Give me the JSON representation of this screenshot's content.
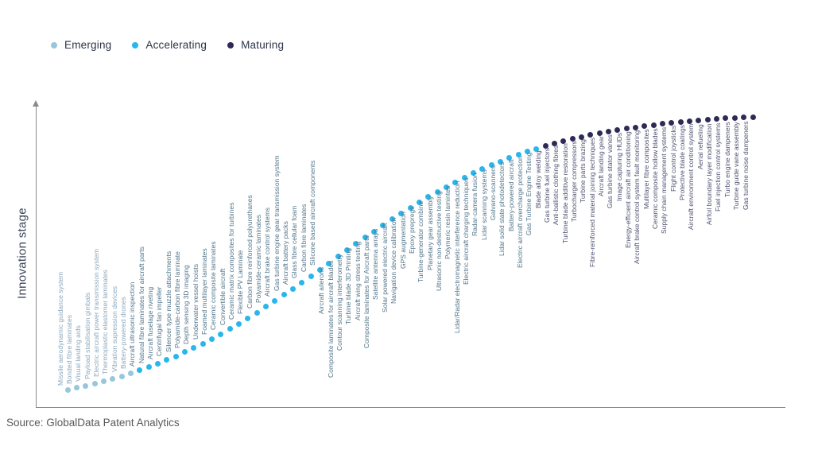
{
  "legend": {
    "items": [
      {
        "label": "Emerging",
        "color": "#97c6dd"
      },
      {
        "label": "Accelerating",
        "color": "#29b6ea"
      },
      {
        "label": "Maturing",
        "color": "#2e2a55"
      }
    ]
  },
  "y_axis_label": "Innovation stage",
  "source": "Source: GlobalData Patent Analytics",
  "label_colors": {
    "Emerging": "#8aa7bd",
    "Accelerating": "#51748a",
    "Maturing": "#4e5070"
  },
  "chart_data": {
    "type": "scatter",
    "title": "",
    "xlabel": "",
    "ylabel": "Innovation stage",
    "grid": false,
    "legend_position": "top-left",
    "x_encoding": "rank order of technology along S-curve (1-77)",
    "y_encoding": "innovation stage (unlabeled S-curve height, arrow axis)",
    "legend": [
      "Emerging",
      "Accelerating",
      "Maturing"
    ],
    "stage_colors": {
      "Emerging": "#97c6dd",
      "Accelerating": "#29b6ea",
      "Maturing": "#2e2a55"
    },
    "points": [
      {
        "rank": 1,
        "label": "Missile aerodynamic guidance system",
        "stage": "Emerging"
      },
      {
        "rank": 2,
        "label": "Bonded fibre laminates",
        "stage": "Emerging"
      },
      {
        "rank": 3,
        "label": "Visual landing aids",
        "stage": "Emerging"
      },
      {
        "rank": 4,
        "label": "Payload stabilisation gimbals",
        "stage": "Emerging"
      },
      {
        "rank": 5,
        "label": "Electric aircraft power transmission system",
        "stage": "Emerging"
      },
      {
        "rank": 6,
        "label": "Thermoplastic elastomer laminates",
        "stage": "Emerging"
      },
      {
        "rank": 7,
        "label": "Vibration supression devices",
        "stage": "Emerging"
      },
      {
        "rank": 8,
        "label": "Battery-powered drones",
        "stage": "Emerging"
      },
      {
        "rank": 9,
        "label": "Aircraft ultrasonic inspection",
        "stage": "Accelerating"
      },
      {
        "rank": 10,
        "label": "Natural fibre laminates for aircraft parts",
        "stage": "Accelerating"
      },
      {
        "rank": 11,
        "label": "Aircraft fuselage riveting",
        "stage": "Accelerating"
      },
      {
        "rank": 12,
        "label": "Centrifugal fan impeller",
        "stage": "Accelerating"
      },
      {
        "rank": 13,
        "label": "Silencer type muzzle attachments",
        "stage": "Accelerating"
      },
      {
        "rank": 14,
        "label": "Polyamide-carbon fibre laminate",
        "stage": "Accelerating"
      },
      {
        "rank": 15,
        "label": "Depth sensing 3D imaging",
        "stage": "Accelerating"
      },
      {
        "rank": 16,
        "label": "Underwater vessel hoists",
        "stage": "Accelerating"
      },
      {
        "rank": 17,
        "label": "Foamed multilayer laminates",
        "stage": "Accelerating"
      },
      {
        "rank": 18,
        "label": "Ceramic composite laminates",
        "stage": "Accelerating"
      },
      {
        "rank": 19,
        "label": "Convertible aircraft",
        "stage": "Accelerating"
      },
      {
        "rank": 20,
        "label": "Ceramic matrix composites for turbines",
        "stage": "Accelerating"
      },
      {
        "rank": 21,
        "label": "Flexible PV Laminate",
        "stage": "Accelerating"
      },
      {
        "rank": 22,
        "label": "Carbon fibre reinforced polyurethanes",
        "stage": "Accelerating"
      },
      {
        "rank": 23,
        "label": "Polyamide-ceramic laminates",
        "stage": "Accelerating"
      },
      {
        "rank": 24,
        "label": "Aircraft brake control systems",
        "stage": "Accelerating"
      },
      {
        "rank": 25,
        "label": "Gas turbine engine gear transmission system",
        "stage": "Accelerating"
      },
      {
        "rank": 26,
        "label": "Aircraft battery packs",
        "stage": "Accelerating"
      },
      {
        "rank": 27,
        "label": "Glass fibre cellular foam",
        "stage": "Accelerating"
      },
      {
        "rank": 28,
        "label": "Carbon fibre laminates",
        "stage": "Accelerating"
      },
      {
        "rank": 29,
        "label": "Silicone based aircraft components",
        "stage": "Accelerating"
      },
      {
        "rank": 30,
        "label": "Aircraft ailerons",
        "stage": "Accelerating"
      },
      {
        "rank": 31,
        "label": "Composite laminates for aircraft blades",
        "stage": "Accelerating"
      },
      {
        "rank": 32,
        "label": "Contour scanning interferometry",
        "stage": "Accelerating"
      },
      {
        "rank": 33,
        "label": "Turbine blade 3D Printing",
        "stage": "Accelerating"
      },
      {
        "rank": 34,
        "label": "Aircraft wing stress testing",
        "stage": "Accelerating"
      },
      {
        "rank": 35,
        "label": "Composite laminates for Aircraft parts",
        "stage": "Accelerating"
      },
      {
        "rank": 36,
        "label": "Satellite antenna arrays",
        "stage": "Accelerating"
      },
      {
        "rank": 37,
        "label": "Solar powered electric aircraft",
        "stage": "Accelerating"
      },
      {
        "rank": 38,
        "label": "Navigation device calibration",
        "stage": "Accelerating"
      },
      {
        "rank": 39,
        "label": "GPS augmentation",
        "stage": "Accelerating"
      },
      {
        "rank": 40,
        "label": "Epoxy prepregs",
        "stage": "Accelerating"
      },
      {
        "rank": 41,
        "label": "Turbine-generator combine",
        "stage": "Accelerating"
      },
      {
        "rank": 42,
        "label": "Planetary gear assembly",
        "stage": "Accelerating"
      },
      {
        "rank": 43,
        "label": "Ultrasonic non-destructive testing",
        "stage": "Accelerating"
      },
      {
        "rank": 44,
        "label": "Polymeric resin lamintes",
        "stage": "Accelerating"
      },
      {
        "rank": 45,
        "label": "Lidar/Radar electromagnetic interference reduction",
        "stage": "Accelerating"
      },
      {
        "rank": 46,
        "label": "Electric aircraft charging techniques",
        "stage": "Accelerating"
      },
      {
        "rank": 47,
        "label": "Radar-camera fusion",
        "stage": "Accelerating"
      },
      {
        "rank": 48,
        "label": "Lidar scanning systems",
        "stage": "Accelerating"
      },
      {
        "rank": 49,
        "label": "Galvano-scanners",
        "stage": "Accelerating"
      },
      {
        "rank": 50,
        "label": "Lidar solid state photodetectors",
        "stage": "Accelerating"
      },
      {
        "rank": 51,
        "label": "Battery-powered aircraft",
        "stage": "Accelerating"
      },
      {
        "rank": 52,
        "label": "Electric aircraft overcharge protection",
        "stage": "Accelerating"
      },
      {
        "rank": 53,
        "label": "Gas Turbine Engine Testing",
        "stage": "Accelerating"
      },
      {
        "rank": 54,
        "label": "Blade alloy welding",
        "stage": "Maturing"
      },
      {
        "rank": 55,
        "label": "Gas turbine fuel injectors",
        "stage": "Maturing"
      },
      {
        "rank": 56,
        "label": "Anti-ballistic clothing fibres",
        "stage": "Maturing"
      },
      {
        "rank": 57,
        "label": "Turbine blade additive restoration",
        "stage": "Maturing"
      },
      {
        "rank": 58,
        "label": "Turbocharger compressors",
        "stage": "Maturing"
      },
      {
        "rank": 59,
        "label": "Turbine parts brazing",
        "stage": "Maturing"
      },
      {
        "rank": 60,
        "label": "Fibre-reinforced material joining techniques",
        "stage": "Maturing"
      },
      {
        "rank": 61,
        "label": "Aircraft landing gear",
        "stage": "Maturing"
      },
      {
        "rank": 62,
        "label": "Gas turbine stator vanes",
        "stage": "Maturing"
      },
      {
        "rank": 63,
        "label": "Image capturing HUDs",
        "stage": "Maturing"
      },
      {
        "rank": 64,
        "label": "Energy-efficient aircraft air conditioning",
        "stage": "Maturing"
      },
      {
        "rank": 65,
        "label": "Aircraft brake control system fault monitoring",
        "stage": "Maturing"
      },
      {
        "rank": 66,
        "label": "Multilayer fibre composites",
        "stage": "Maturing"
      },
      {
        "rank": 67,
        "label": "Ceramic composite hollow blades",
        "stage": "Maturing"
      },
      {
        "rank": 68,
        "label": "Supply chain management systems",
        "stage": "Maturing"
      },
      {
        "rank": 69,
        "label": "Flight control joysticks",
        "stage": "Maturing"
      },
      {
        "rank": 70,
        "label": "Protective blade coatings",
        "stage": "Maturing"
      },
      {
        "rank": 71,
        "label": "Aircraft environment control system",
        "stage": "Maturing"
      },
      {
        "rank": 72,
        "label": "Aerial refueling",
        "stage": "Maturing"
      },
      {
        "rank": 73,
        "label": "Airfoil boundary layer modification",
        "stage": "Maturing"
      },
      {
        "rank": 74,
        "label": "Fuel injection control systems",
        "stage": "Maturing"
      },
      {
        "rank": 75,
        "label": "Turbo engine dampeners",
        "stage": "Maturing"
      },
      {
        "rank": 76,
        "label": "Turbine guide vane assembly",
        "stage": "Maturing"
      },
      {
        "rank": 77,
        "label": "Gas turbine noise dampeners",
        "stage": "Maturing"
      }
    ]
  }
}
